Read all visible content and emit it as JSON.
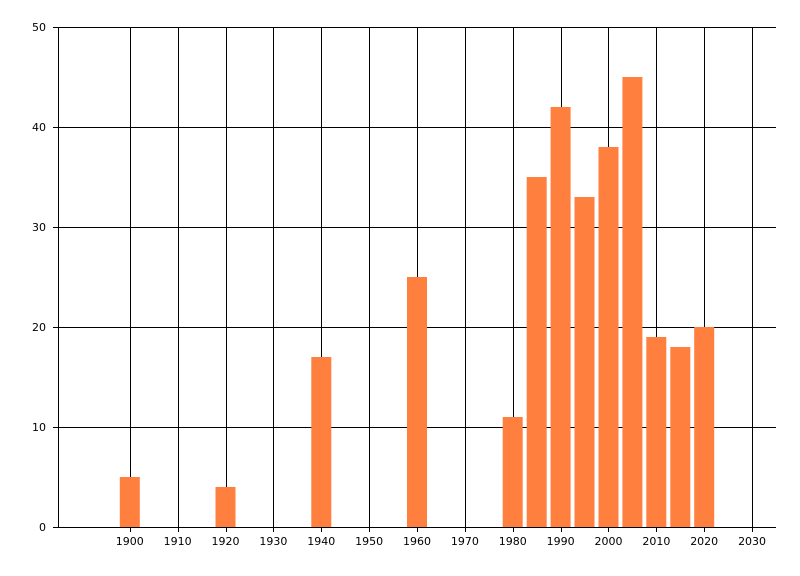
{
  "chart_data": {
    "type": "bar",
    "x": [
      1900,
      1920,
      1940,
      1960,
      1980,
      1985,
      1990,
      1995,
      2000,
      2005,
      2010,
      2015,
      2020
    ],
    "values": [
      5,
      4,
      17,
      25,
      11,
      35,
      42,
      33,
      38,
      45,
      19,
      18,
      20
    ],
    "title": "",
    "xlabel": "",
    "ylabel": "",
    "xlim": [
      1885,
      2035
    ],
    "ylim": [
      0,
      50
    ],
    "xticks": [
      1900,
      1910,
      1920,
      1930,
      1940,
      1950,
      1960,
      1970,
      1980,
      1990,
      2000,
      2010,
      2020,
      2030
    ],
    "yticks": [
      0,
      10,
      20,
      30,
      40,
      50
    ],
    "grid": true,
    "legend": "none",
    "bar_color": "#ff7f3f",
    "grid_color": "#000000"
  }
}
